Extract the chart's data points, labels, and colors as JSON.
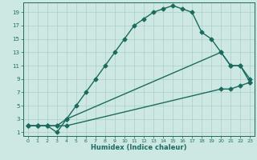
{
  "xlabel": "Humidex (Indice chaleur)",
  "ylabel": "",
  "bg_color": "#cde8e3",
  "grid_color": "#aacec8",
  "line_color": "#1a6b5e",
  "xlim": [
    -0.5,
    23.5
  ],
  "ylim": [
    0.5,
    20.5
  ],
  "xticks": [
    0,
    1,
    2,
    3,
    4,
    5,
    6,
    7,
    8,
    9,
    10,
    11,
    12,
    13,
    14,
    15,
    16,
    17,
    18,
    19,
    20,
    21,
    22,
    23
  ],
  "yticks": [
    1,
    3,
    5,
    7,
    9,
    11,
    13,
    15,
    17,
    19
  ],
  "line1_x": [
    0,
    1,
    2,
    3,
    4,
    5,
    6,
    7,
    8,
    9,
    10,
    11,
    12,
    13,
    14,
    15,
    16,
    17,
    18,
    19,
    20,
    21,
    22,
    23
  ],
  "line1_y": [
    2,
    2,
    2,
    1,
    3,
    5,
    7,
    9,
    11,
    13,
    15,
    17,
    18,
    19,
    19.5,
    20,
    19.5,
    19,
    16,
    15,
    13,
    11,
    11,
    9
  ],
  "line2_x": [
    0,
    1,
    2,
    3,
    4,
    20,
    21,
    22,
    23
  ],
  "line2_y": [
    2,
    2,
    2,
    2,
    3,
    13,
    11,
    11,
    8.5
  ],
  "line3_x": [
    0,
    1,
    2,
    3,
    4,
    20,
    21,
    22,
    23
  ],
  "line3_y": [
    2,
    2,
    2,
    2,
    2,
    7.5,
    7.5,
    8,
    8.5
  ],
  "marker": "D",
  "markersize": 2.5,
  "linewidth": 1.0
}
